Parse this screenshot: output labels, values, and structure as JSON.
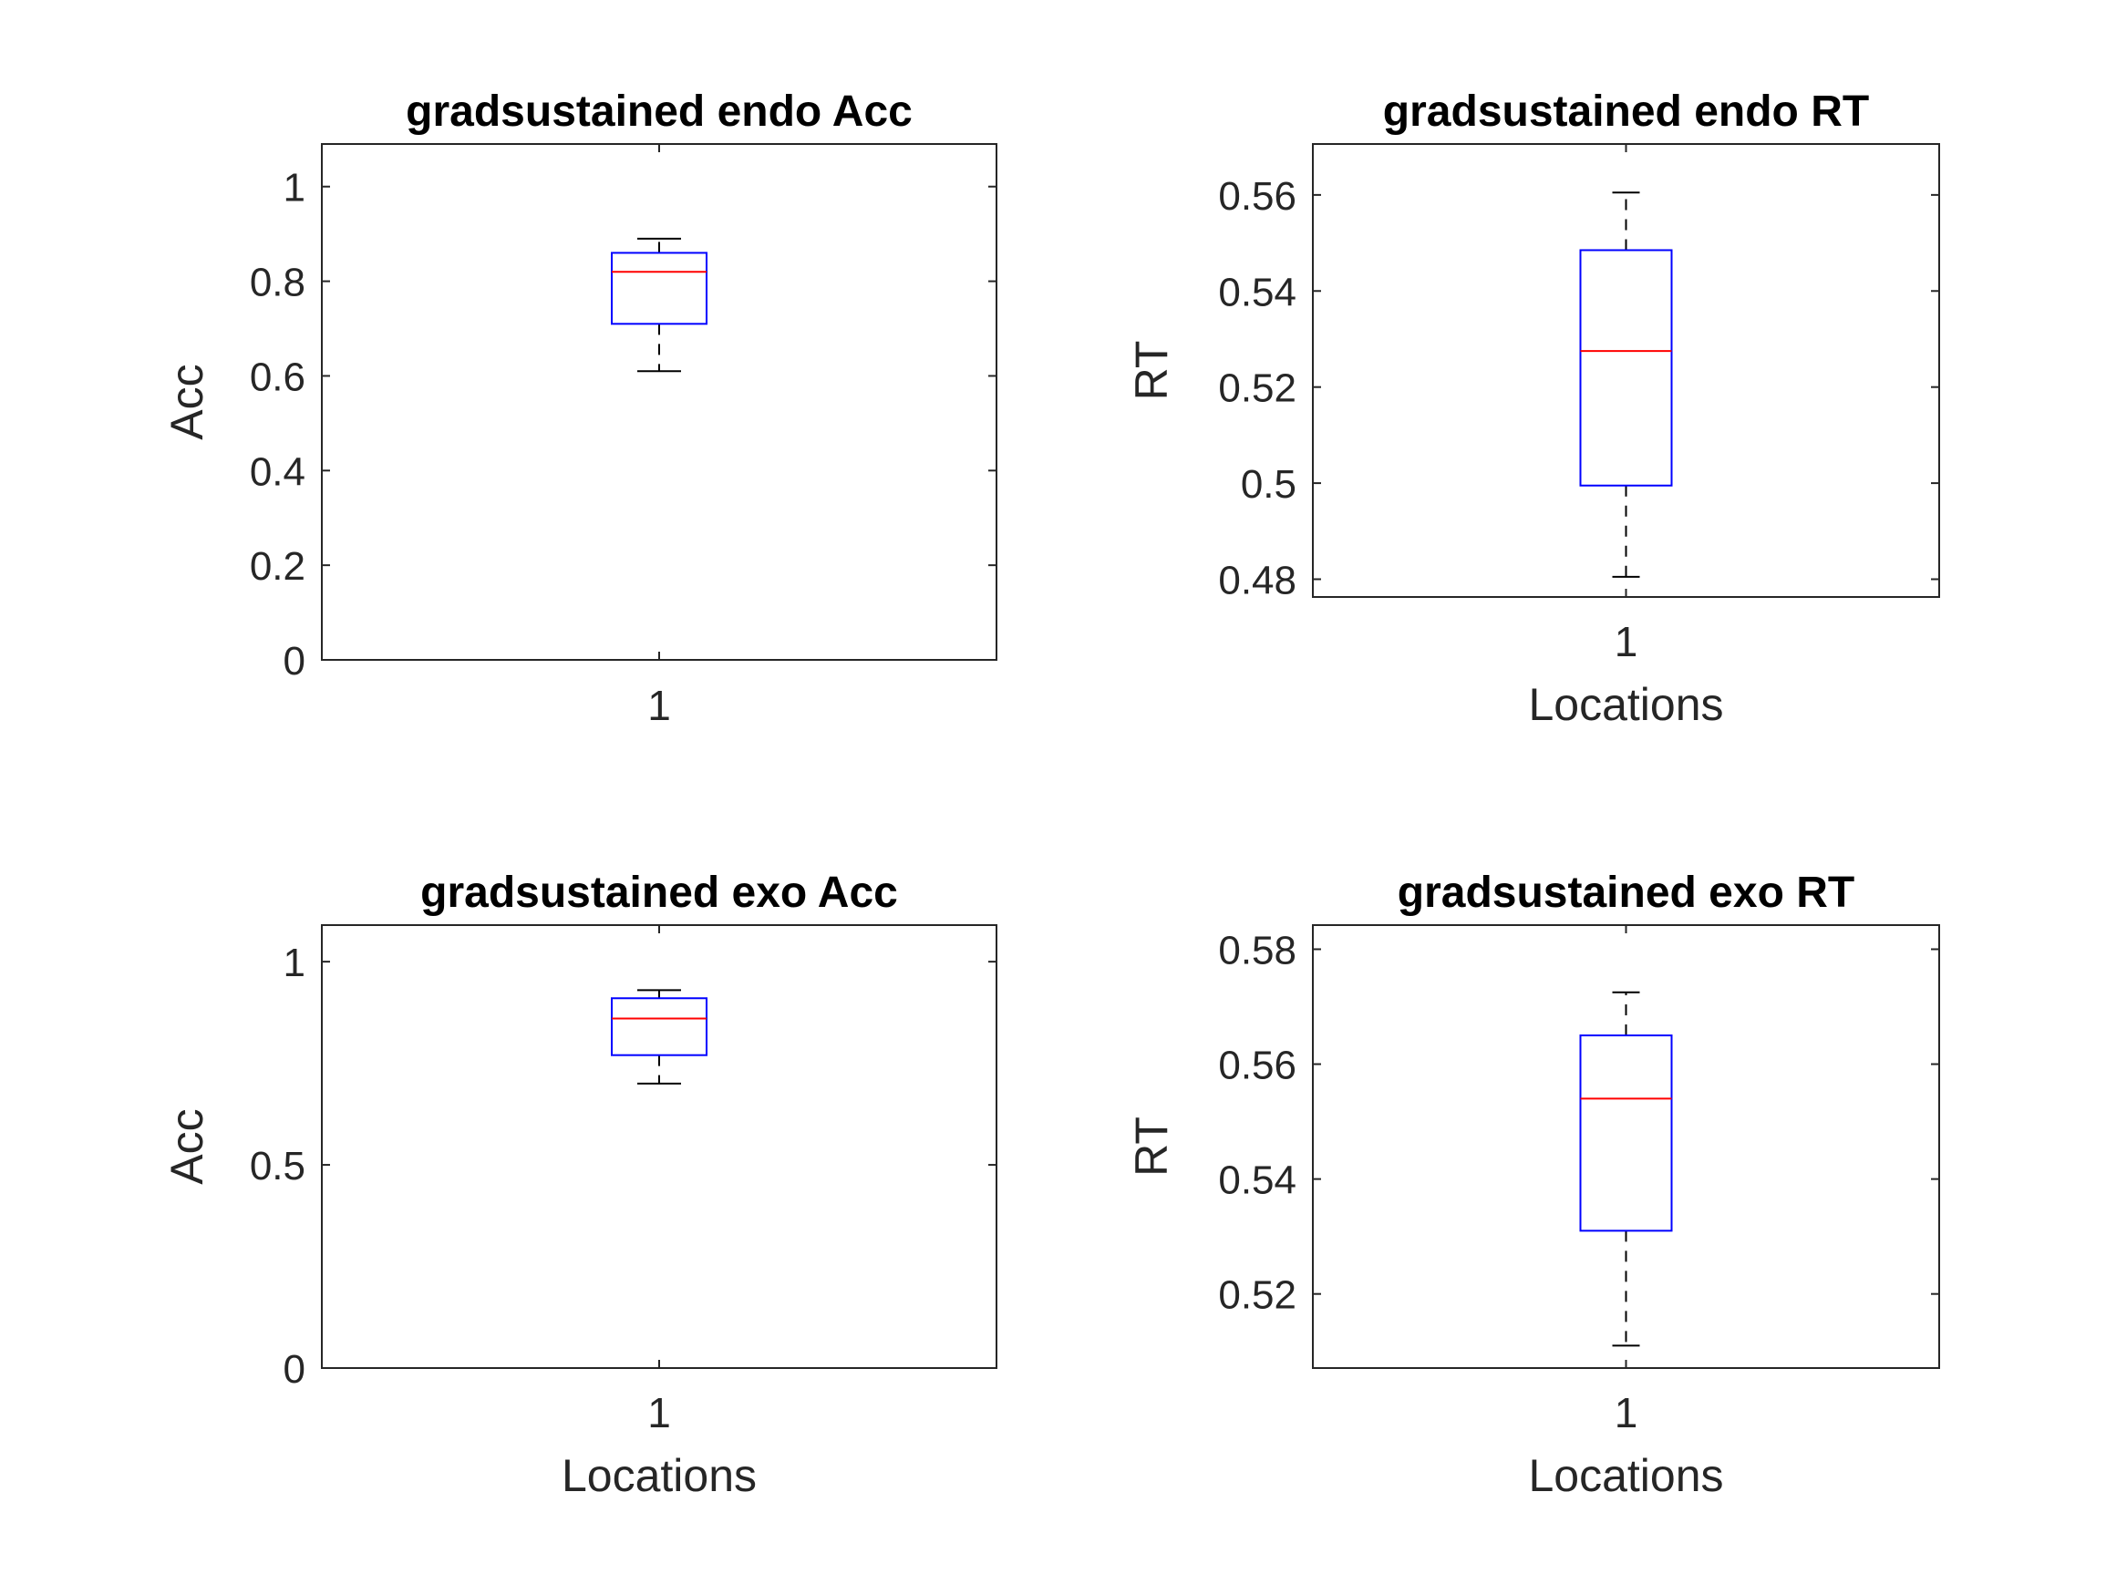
{
  "chart_data": [
    {
      "type": "box",
      "title": "gradsustained endo Acc",
      "xlabel": "",
      "ylabel": "Acc",
      "categories": [
        "1"
      ],
      "ylim": [
        0,
        1.09
      ],
      "yticks": [
        0,
        0.2,
        0.4,
        0.6,
        0.8,
        1
      ],
      "ytick_labels": [
        "0",
        "0.2",
        "0.4",
        "0.6",
        "0.8",
        "1"
      ],
      "box": {
        "whisker_low": 0.61,
        "q1": 0.71,
        "median": 0.82,
        "q3": 0.86,
        "whisker_high": 0.89
      }
    },
    {
      "type": "box",
      "title": "gradsustained endo RT",
      "xlabel": "Locations",
      "ylabel": "RT",
      "categories": [
        "1"
      ],
      "ylim": [
        0.4763,
        0.5706
      ],
      "yticks": [
        0.48,
        0.5,
        0.52,
        0.54,
        0.56
      ],
      "ytick_labels": [
        "0.48",
        "0.5",
        "0.52",
        "0.54",
        "0.56"
      ],
      "box": {
        "whisker_low": 0.4805,
        "q1": 0.4995,
        "median": 0.5275,
        "q3": 0.5485,
        "whisker_high": 0.5605
      }
    },
    {
      "type": "box",
      "title": "gradsustained exo Acc",
      "xlabel": "Locations",
      "ylabel": "Acc",
      "categories": [
        "1"
      ],
      "ylim": [
        0,
        1.09
      ],
      "yticks": [
        0,
        0.5,
        1
      ],
      "ytick_labels": [
        "0",
        "0.5",
        "1"
      ],
      "box": {
        "whisker_low": 0.7,
        "q1": 0.77,
        "median": 0.86,
        "q3": 0.91,
        "whisker_high": 0.93
      }
    },
    {
      "type": "box",
      "title": "gradsustained exo RT",
      "xlabel": "Locations",
      "ylabel": "RT",
      "categories": [
        "1"
      ],
      "ylim": [
        0.5071,
        0.5842
      ],
      "yticks": [
        0.52,
        0.54,
        0.56,
        0.58
      ],
      "ytick_labels": [
        "0.52",
        "0.54",
        "0.56",
        "0.58"
      ],
      "box": {
        "whisker_low": 0.511,
        "q1": 0.531,
        "median": 0.554,
        "q3": 0.565,
        "whisker_high": 0.5725
      }
    }
  ],
  "colors": {
    "box": "#0000ff",
    "median": "#ff0000",
    "whisker": "#000000",
    "axis": "#262626"
  }
}
